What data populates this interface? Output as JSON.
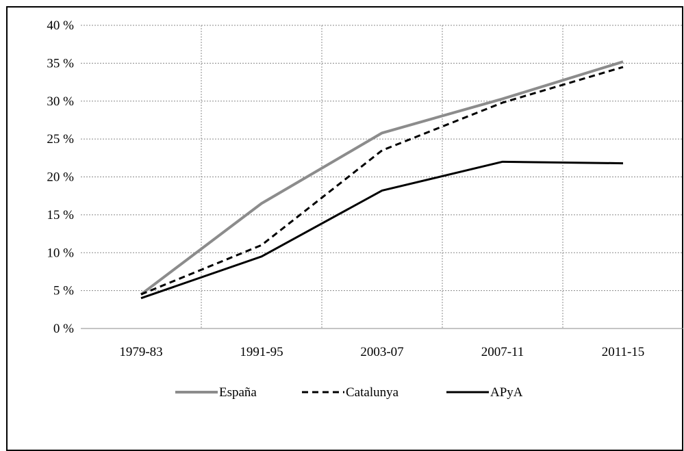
{
  "chart_data": {
    "type": "line",
    "title": "",
    "xlabel": "",
    "ylabel": "",
    "categories": [
      "1979-83",
      "1991-95",
      "2003-07",
      "2007-11",
      "2011-15"
    ],
    "ylim": [
      0,
      40
    ],
    "yticks": [
      0,
      5,
      10,
      15,
      20,
      25,
      30,
      35,
      40
    ],
    "ytick_labels": [
      "0 %",
      "5 %",
      "10 %",
      "15 %",
      "20 %",
      "25 %",
      "30 %",
      "35 %",
      "40 %"
    ],
    "grid": true,
    "legend_position": "bottom",
    "series": [
      {
        "name": "España",
        "values": [
          4.5,
          16.5,
          25.8,
          30.3,
          35.2
        ],
        "color": "#8c8c8c",
        "style": "solid-thick"
      },
      {
        "name": "Catalunya",
        "values": [
          4.5,
          11.0,
          23.5,
          29.8,
          34.5
        ],
        "color": "#000000",
        "style": "dashed"
      },
      {
        "name": "APyA",
        "values": [
          4.0,
          9.5,
          18.2,
          22.0,
          21.8
        ],
        "color": "#000000",
        "style": "solid"
      }
    ]
  }
}
